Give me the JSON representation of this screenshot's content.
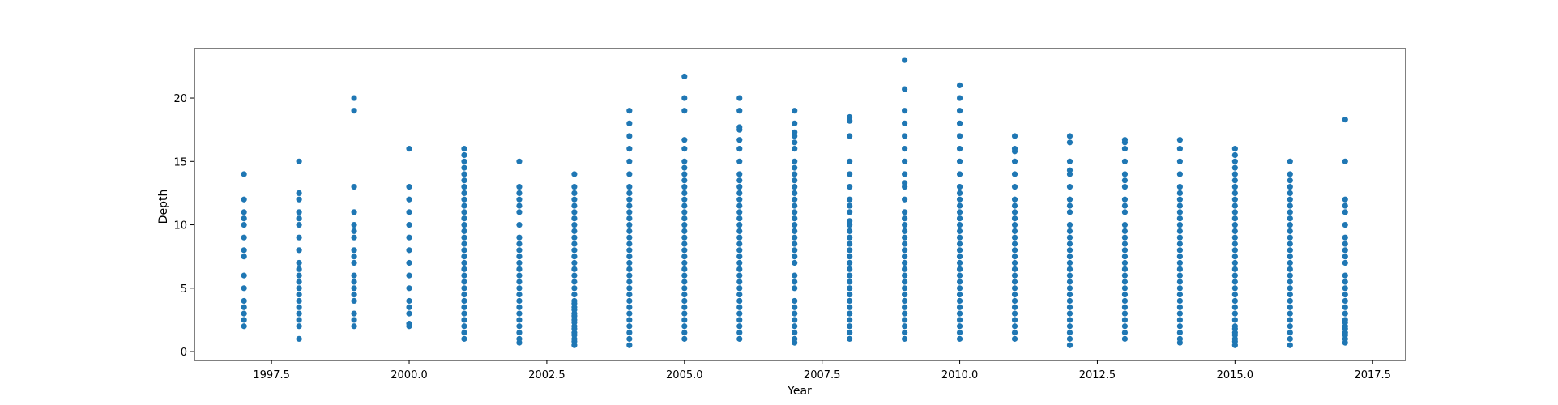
{
  "chart_data": {
    "type": "scatter",
    "xlabel": "Year",
    "ylabel": "Depth",
    "xlim": [
      1996.1,
      2018.1
    ],
    "ylim": [
      -0.7,
      23.9
    ],
    "xticks": [
      1997.5,
      2000.0,
      2002.5,
      2005.0,
      2007.5,
      2010.0,
      2012.5,
      2015.0,
      2017.5
    ],
    "xtick_labels": [
      "1997.5",
      "2000.0",
      "2002.5",
      "2005.0",
      "2007.5",
      "2010.0",
      "2012.5",
      "2015.0",
      "2017.5"
    ],
    "yticks": [
      0,
      5,
      10,
      15,
      20
    ],
    "ytick_labels": [
      "0",
      "5",
      "10",
      "15",
      "20"
    ],
    "grid": false,
    "marker_color": "#1f77b4",
    "series": [
      {
        "points": [
          {
            "year": 1997,
            "depths": [
              2,
              2.5,
              3,
              3.5,
              4,
              5,
              6,
              7.5,
              8,
              9,
              10,
              10.5,
              11,
              12,
              14
            ]
          },
          {
            "year": 1998,
            "depths": [
              1,
              2,
              2.5,
              3,
              3.5,
              4,
              4.5,
              5,
              5.5,
              6,
              6.5,
              7,
              8,
              9,
              10,
              10.5,
              11,
              12,
              12.5,
              15
            ]
          },
          {
            "year": 1999,
            "depths": [
              2,
              2.5,
              3,
              4,
              4.5,
              5,
              5.5,
              6,
              7,
              7.5,
              8,
              9,
              9.5,
              10,
              11,
              13,
              19,
              20
            ]
          },
          {
            "year": 2000,
            "depths": [
              2,
              2.2,
              3,
              3.5,
              4,
              5,
              6,
              7,
              8,
              9,
              10,
              11,
              12,
              13,
              16
            ]
          },
          {
            "year": 2001,
            "depths": [
              1,
              1.5,
              2,
              2.5,
              3,
              3.5,
              4,
              4.5,
              5,
              5.5,
              6,
              6.5,
              7,
              7.5,
              8,
              8.5,
              9,
              9.5,
              10,
              10.5,
              11,
              11.5,
              12,
              12.5,
              13,
              13.5,
              14,
              14.5,
              15,
              15.5,
              16
            ]
          },
          {
            "year": 2002,
            "depths": [
              0.7,
              1,
              1.5,
              2,
              2.5,
              3,
              3.5,
              4,
              4.5,
              5,
              5.5,
              6,
              6.5,
              7,
              7.5,
              8,
              8.5,
              9,
              10,
              11,
              11.5,
              12,
              12.5,
              13,
              15
            ]
          },
          {
            "year": 2003,
            "depths": [
              0.5,
              0.8,
              1,
              1.3,
              1.5,
              1.8,
              2,
              2.3,
              2.5,
              2.8,
              3,
              3.3,
              3.5,
              3.8,
              4,
              4.5,
              5,
              5.5,
              6,
              6.5,
              7,
              7.5,
              8,
              8.5,
              9,
              9.5,
              10,
              10.5,
              11,
              11.5,
              12,
              12.5,
              13,
              14
            ]
          },
          {
            "year": 2004,
            "depths": [
              0.5,
              1,
              1.5,
              2,
              2.5,
              3,
              3.5,
              4,
              4.5,
              5,
              5.5,
              6,
              6.5,
              7,
              7.5,
              8,
              8.5,
              9,
              9.5,
              10,
              10.5,
              11,
              11.5,
              12,
              12.5,
              13,
              14,
              15,
              16,
              17,
              18,
              19
            ]
          },
          {
            "year": 2005,
            "depths": [
              1,
              1.5,
              2,
              2.5,
              3,
              3.5,
              4,
              4.5,
              5,
              5.5,
              6,
              6.5,
              7,
              7.5,
              8,
              8.5,
              9,
              9.5,
              10,
              10.5,
              11,
              11.5,
              12,
              12.5,
              13,
              13.5,
              14,
              14.5,
              15,
              16,
              16.7,
              19,
              20,
              21.7
            ]
          },
          {
            "year": 2006,
            "depths": [
              1,
              1.5,
              2,
              2.5,
              3,
              3.5,
              4,
              4.5,
              5,
              5.5,
              6,
              6.5,
              7,
              7.5,
              8,
              8.5,
              9,
              9.5,
              10,
              10.5,
              11,
              11.5,
              12,
              12.5,
              13,
              13.5,
              14,
              15,
              16,
              16.7,
              17.5,
              17.7,
              19,
              20
            ]
          },
          {
            "year": 2007,
            "depths": [
              0.7,
              1,
              1.5,
              2,
              2.5,
              3,
              3.5,
              4,
              5,
              5.5,
              6,
              7,
              7.5,
              8,
              8.5,
              9,
              9.5,
              10,
              10.5,
              11,
              11.5,
              12,
              12.5,
              13,
              13.5,
              14,
              14.5,
              15,
              16,
              16.5,
              17,
              17.3,
              18,
              19
            ]
          },
          {
            "year": 2008,
            "depths": [
              1,
              1.5,
              2,
              2.5,
              3,
              3.5,
              4,
              4.5,
              5,
              5.5,
              6,
              6.5,
              7,
              7.5,
              8,
              8.5,
              9,
              9.5,
              10,
              10.3,
              11,
              11.5,
              12,
              13,
              14,
              15,
              17,
              18.2,
              18.5
            ]
          },
          {
            "year": 2009,
            "depths": [
              1,
              1.5,
              2,
              2.5,
              3,
              3.5,
              4,
              4.5,
              5,
              5.5,
              6,
              6.5,
              7,
              7.5,
              8,
              8.5,
              9,
              9.5,
              10,
              10.5,
              11,
              12,
              13,
              13.3,
              14,
              15,
              16,
              17,
              18,
              19,
              20.7,
              23
            ]
          },
          {
            "year": 2010,
            "depths": [
              1,
              1.5,
              2,
              2.5,
              3,
              3.5,
              4,
              4.5,
              5,
              5.5,
              6,
              6.5,
              7,
              7.5,
              8,
              8.5,
              9,
              9.5,
              10,
              10.5,
              11,
              11.5,
              12,
              12.5,
              13,
              14,
              15,
              16,
              17,
              18,
              19,
              20,
              21
            ]
          },
          {
            "year": 2011,
            "depths": [
              1,
              1.5,
              2,
              2.5,
              3,
              3.5,
              4,
              4.5,
              5,
              5.5,
              6,
              6.5,
              7,
              7.5,
              8,
              8.5,
              9,
              9.5,
              10,
              10.5,
              11,
              11.5,
              12,
              13,
              14,
              15,
              15.8,
              16,
              17
            ]
          },
          {
            "year": 2012,
            "depths": [
              0.5,
              1,
              1.5,
              2,
              2.5,
              3,
              3.5,
              4,
              4.5,
              5,
              5.5,
              6,
              6.5,
              7,
              7.5,
              8,
              8.5,
              9,
              9.5,
              10,
              11,
              11.5,
              12,
              13,
              14,
              14.3,
              15,
              16.5,
              17
            ]
          },
          {
            "year": 2013,
            "depths": [
              1,
              1.5,
              2,
              2.5,
              3,
              3.5,
              4,
              4.5,
              5,
              5.5,
              6,
              6.5,
              7,
              7.5,
              8,
              8.5,
              9,
              9.5,
              10,
              11,
              11.5,
              12,
              13,
              13.5,
              14,
              15,
              16,
              16.5,
              16.7
            ]
          },
          {
            "year": 2014,
            "depths": [
              0.7,
              1,
              1.5,
              2,
              2.5,
              3,
              3.5,
              4,
              4.5,
              5,
              5.5,
              6,
              6.5,
              7,
              7.5,
              8,
              8.5,
              9,
              9.5,
              10,
              10.5,
              11,
              11.5,
              12,
              12.5,
              13,
              14,
              15,
              16,
              16.7
            ]
          },
          {
            "year": 2015,
            "depths": [
              0.5,
              0.8,
              1,
              1.3,
              1.5,
              1.8,
              2,
              2.5,
              3,
              3.5,
              4,
              4.5,
              5,
              5.5,
              6,
              6.5,
              7,
              7.5,
              8,
              8.5,
              9,
              9.5,
              10,
              10.5,
              11,
              11.5,
              12,
              12.5,
              13,
              13.5,
              14,
              14.5,
              15,
              15.5,
              16
            ]
          },
          {
            "year": 2016,
            "depths": [
              0.5,
              1,
              1.5,
              2,
              2.5,
              3,
              3.5,
              4,
              4.5,
              5,
              5.5,
              6,
              6.5,
              7,
              7.5,
              8,
              8.5,
              9,
              9.5,
              10,
              10.5,
              11,
              11.5,
              12,
              12.5,
              13,
              13.5,
              14,
              15
            ]
          },
          {
            "year": 2017,
            "depths": [
              0.7,
              1,
              1.3,
              1.5,
              1.8,
              2,
              2.3,
              2.5,
              3,
              3.5,
              4,
              4.5,
              5,
              5.5,
              6,
              7,
              7.5,
              8,
              8.5,
              9,
              10,
              11,
              11.5,
              12,
              15,
              18.3
            ]
          }
        ]
      }
    ]
  }
}
